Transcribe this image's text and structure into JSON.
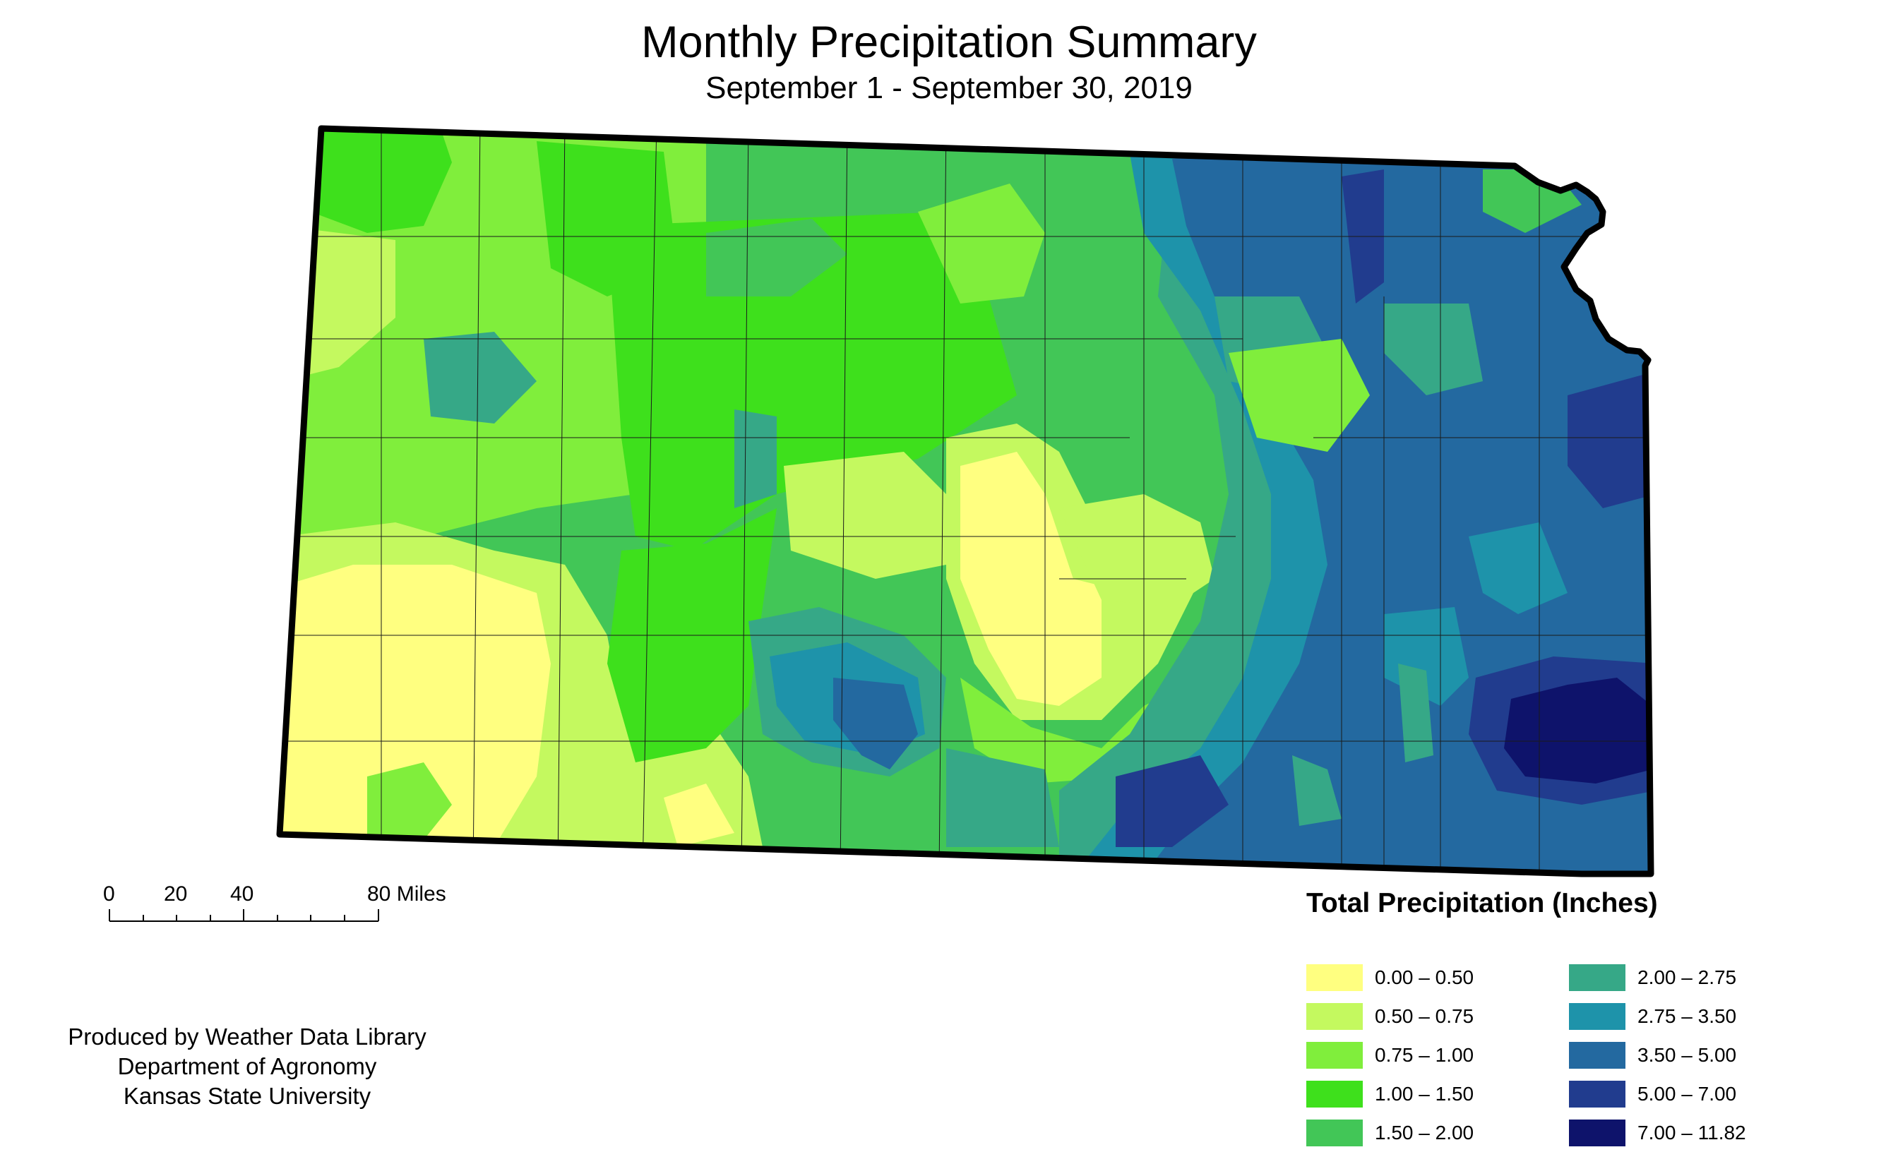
{
  "header": {
    "title": "Monthly Precipitation Summary",
    "subtitle": "September 1 - September 30, 2019"
  },
  "scale_bar": {
    "labels": [
      "0",
      "20",
      "40",
      "80 Miles"
    ]
  },
  "credits": {
    "line1": "Produced by Weather Data Library",
    "line2": "Department of Agronomy",
    "line3": "Kansas State University"
  },
  "legend": {
    "title": "Total Precipitation (Inches)",
    "classes": [
      {
        "label": "0.00 – 0.50",
        "color": "#ffff80"
      },
      {
        "label": "0.50 – 0.75",
        "color": "#c4f95f"
      },
      {
        "label": "0.75 – 1.00",
        "color": "#80ee3c"
      },
      {
        "label": "1.00 – 1.50",
        "color": "#3ee01c"
      },
      {
        "label": "1.50 – 2.00",
        "color": "#42c657"
      },
      {
        "label": "2.00 – 2.75",
        "color": "#36a887"
      },
      {
        "label": "2.75 – 3.50",
        "color": "#1e93aa"
      },
      {
        "label": "3.50 – 5.00",
        "color": "#2369a0"
      },
      {
        "label": "5.00 – 7.00",
        "color": "#213c8e"
      },
      {
        "label": "7.00 – 11.82",
        "color": "#0e136b"
      }
    ]
  },
  "map": {
    "region": "Kansas",
    "outline_color": "#000000"
  }
}
